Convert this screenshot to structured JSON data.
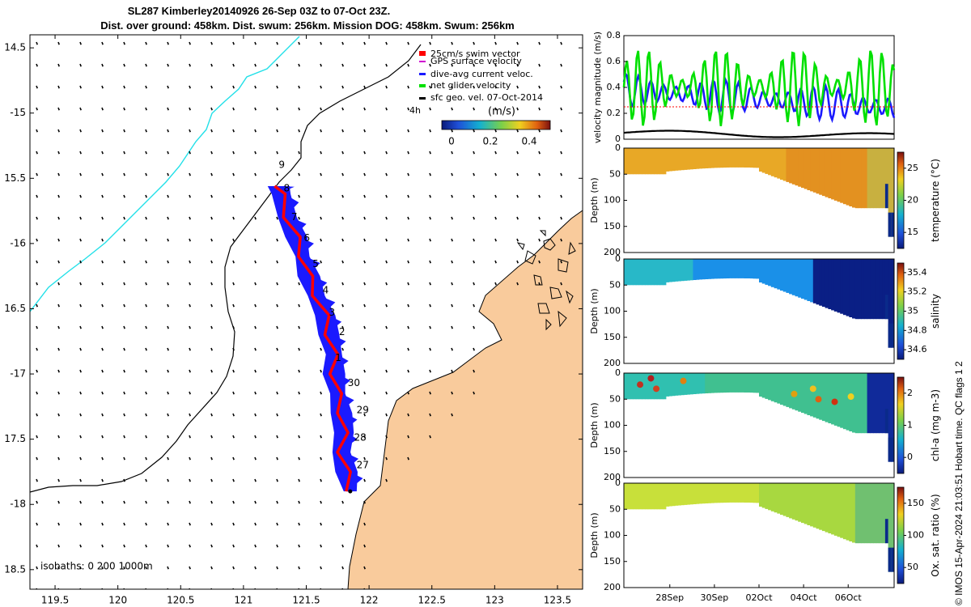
{
  "header": {
    "title_line1": "SL287 Kimberley20140926 26-Sep 03Z to 07-Oct 23Z.",
    "title_line2": "Dist. over ground: 458km. Dist. swum: 256km. Mission DOG: 458km. Swum: 256km"
  },
  "credit": "© IMOS 15-Apr-2024 21:03:51 Hobart time. QC flags 1  2",
  "colors": {
    "land": "#f9cb9c",
    "track": "#1a1aff",
    "swim": "#ff0000",
    "gps": "#d000d0",
    "net": "#00e000",
    "shelf": "#00e0e0"
  },
  "chart_data": [
    {
      "type": "map",
      "name": "track-map",
      "xlim": [
        119.3,
        123.7
      ],
      "ylim": [
        -18.65,
        -14.4
      ],
      "xticks": [
        119.5,
        120,
        120.5,
        121,
        121.5,
        122,
        122.5,
        123,
        123.5
      ],
      "yticks": [
        -14.5,
        -15,
        -15.5,
        -16,
        -16.5,
        -17,
        -17.5,
        -18,
        -18.5
      ],
      "xtick_labels": [
        "119.5",
        "120",
        "120.5",
        "121",
        "121.5",
        "122",
        "122.5",
        "123",
        "123.5"
      ],
      "ytick_labels": [
        "14.5",
        "-15",
        "15.5",
        "-16",
        "16.5",
        "-17",
        "17.5",
        "-18",
        "18.5"
      ],
      "legend": {
        "items": [
          "25cm/s swim vector",
          "GPS surface velocity",
          "dive-avg current veloc.",
          "net glider velocity",
          "sfc geo. vel. 07-Oct-2014"
        ],
        "scale_label": "(m/s)",
        "tide_label": "4h",
        "colorbar_ticks": [
          "0",
          "0.2",
          "0.4"
        ]
      },
      "isobath_label": "isobaths: 0   200   1000m",
      "track": [
        [
          121.85,
          -17.9
        ],
        [
          121.82,
          -17.75
        ],
        [
          121.78,
          -17.6
        ],
        [
          121.8,
          -17.45
        ],
        [
          121.78,
          -17.3
        ],
        [
          121.75,
          -17.15
        ],
        [
          121.72,
          -17.0
        ],
        [
          121.72,
          -16.85
        ],
        [
          121.68,
          -16.7
        ],
        [
          121.65,
          -16.55
        ],
        [
          121.58,
          -16.4
        ],
        [
          121.52,
          -16.25
        ],
        [
          121.47,
          -16.1
        ],
        [
          121.42,
          -15.95
        ],
        [
          121.35,
          -15.8
        ],
        [
          121.3,
          -15.62
        ],
        [
          121.28,
          -15.56
        ]
      ],
      "day_labels": [
        {
          "text": "27",
          "lon": 121.9,
          "lat": -17.7
        },
        {
          "text": "28",
          "lon": 121.88,
          "lat": -17.49
        },
        {
          "text": "29",
          "lon": 121.9,
          "lat": -17.28
        },
        {
          "text": "30",
          "lon": 121.83,
          "lat": -17.07
        },
        {
          "text": "1",
          "lon": 121.73,
          "lat": -16.88
        },
        {
          "text": "2",
          "lon": 121.76,
          "lat": -16.68
        },
        {
          "text": "3",
          "lon": 121.68,
          "lat": -16.53
        },
        {
          "text": "4",
          "lon": 121.63,
          "lat": -16.36
        },
        {
          "text": "5",
          "lon": 121.55,
          "lat": -16.16
        },
        {
          "text": "6",
          "lon": 121.48,
          "lat": -15.96
        },
        {
          "text": "7",
          "lon": 121.38,
          "lat": -15.8
        },
        {
          "text": "8",
          "lon": 121.32,
          "lat": -15.58
        },
        {
          "text": "9",
          "lon": 121.28,
          "lat": -15.4
        }
      ]
    },
    {
      "type": "line",
      "name": "velocity-panel",
      "ylabel": "velocity magnitude (m/s)",
      "ylim": [
        0,
        0.8
      ],
      "yticks": [
        "0",
        "0.2",
        "0.4",
        "0.6",
        "0.8"
      ],
      "series": [
        {
          "name": "dive-avg current veloc.",
          "color": "#1a1aff",
          "mean": 0.38,
          "amp": 0.13
        },
        {
          "name": "net glider velocity",
          "color": "#00e000",
          "mean": 0.4,
          "amp": 0.3
        },
        {
          "name": "sfc geo. vel.",
          "color": "#000000",
          "mean": 0.05,
          "amp": 0.02
        },
        {
          "name": "25cm/s swim vector",
          "color": "#ff0000",
          "mean": 0.25,
          "amp": 0.0
        }
      ]
    },
    {
      "type": "heatmap",
      "name": "temperature-panel",
      "ylabel": "Depth (m)",
      "ylim": [
        0,
        200
      ],
      "yticks": [
        "0",
        "50",
        "100",
        "150",
        "200"
      ],
      "cbar_label": "temperature (°C)",
      "cbar_ticks": [
        "15",
        "20",
        "25"
      ],
      "cmap": "parula-temp"
    },
    {
      "type": "heatmap",
      "name": "salinity-panel",
      "ylabel": "Depth (m)",
      "ylim": [
        0,
        200
      ],
      "yticks": [
        "0",
        "50",
        "100",
        "150",
        "200"
      ],
      "cbar_label": "salinity",
      "cbar_ticks": [
        "34.6",
        "34.8",
        "35",
        "35.2",
        "35.4"
      ],
      "cmap": "parula-sal"
    },
    {
      "type": "heatmap",
      "name": "chla-panel",
      "ylabel": "Depth (m)",
      "ylim": [
        0,
        200
      ],
      "yticks": [
        "0",
        "50",
        "100",
        "150",
        "200"
      ],
      "cbar_label": "chl-a (mg m-3)",
      "cbar_ticks": [
        "0",
        "1",
        "2"
      ],
      "cmap": "parula-chl"
    },
    {
      "type": "heatmap",
      "name": "oxygen-panel",
      "ylabel": "Depth (m)",
      "ylim": [
        0,
        200
      ],
      "yticks": [
        "0",
        "50",
        "100",
        "150",
        "200"
      ],
      "cbar_label": "Ox. sat. ratio (%)",
      "cbar_ticks": [
        "50",
        "100",
        "150"
      ],
      "cmap": "parula-oxy",
      "xtick_labels": [
        "28Sep",
        "30Sep",
        "02Oct",
        "04Oct",
        "06Oct"
      ]
    }
  ]
}
